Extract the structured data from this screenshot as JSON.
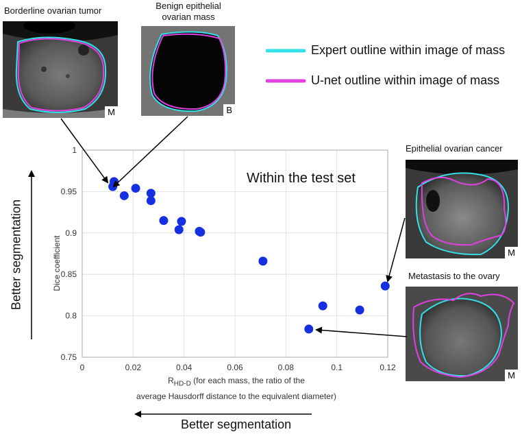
{
  "annotation": {
    "borderline_title": "Borderline ovarian tumor",
    "benign_title_l1": "Benign epithelial",
    "benign_title_l2": "ovarian mass",
    "epithelial_title": "Epithelial ovarian cancer",
    "metastasis_title": "Metastasis to the ovary",
    "within_text": "Within the test set",
    "better_left": "Better segmentation",
    "better_bottom": "Better segmentation",
    "badge_borderline": "M",
    "badge_benign": "B",
    "badge_epithelial": "M",
    "badge_metastasis": "M"
  },
  "legend": [
    {
      "label": "Expert outline within image of mass",
      "color": "#33e0e8"
    },
    {
      "label": "U-net outline within image of mass",
      "color": "#e040e0"
    }
  ],
  "chart_data": {
    "type": "scatter",
    "title": "",
    "ylabel": "Dice coefficient",
    "xlabel_main": "R",
    "xlabel_sub": "HD-D",
    "xlabel_rest": " (for each mass, the ratio of the",
    "xlabel_line2": "average Hausdorff distance to the equivalent diameter)",
    "xlim": [
      0,
      0.12
    ],
    "ylim": [
      0.75,
      1
    ],
    "xticks": [
      0,
      0.02,
      0.04,
      0.06,
      0.08,
      0.1,
      0.12
    ],
    "xtick_labels": [
      "0",
      "0.02",
      "0.04",
      "0.06",
      "0.08",
      "0.1",
      "0.12"
    ],
    "yticks": [
      0.75,
      0.8,
      0.85,
      0.9,
      0.95,
      1
    ],
    "ytick_labels": [
      "0.75",
      "0.8",
      "0.85",
      "0.9",
      "0.95",
      "1"
    ],
    "grid": true,
    "point_color": "#1530e0",
    "points": [
      {
        "x": 0.0125,
        "y": 0.962
      },
      {
        "x": 0.012,
        "y": 0.956
      },
      {
        "x": 0.0165,
        "y": 0.945
      },
      {
        "x": 0.021,
        "y": 0.954
      },
      {
        "x": 0.027,
        "y": 0.948
      },
      {
        "x": 0.027,
        "y": 0.939
      },
      {
        "x": 0.032,
        "y": 0.915
      },
      {
        "x": 0.038,
        "y": 0.904
      },
      {
        "x": 0.039,
        "y": 0.914
      },
      {
        "x": 0.046,
        "y": 0.902
      },
      {
        "x": 0.0465,
        "y": 0.901
      },
      {
        "x": 0.071,
        "y": 0.866
      },
      {
        "x": 0.0945,
        "y": 0.812
      },
      {
        "x": 0.109,
        "y": 0.807
      },
      {
        "x": 0.119,
        "y": 0.836
      },
      {
        "x": 0.089,
        "y": 0.784
      }
    ]
  }
}
